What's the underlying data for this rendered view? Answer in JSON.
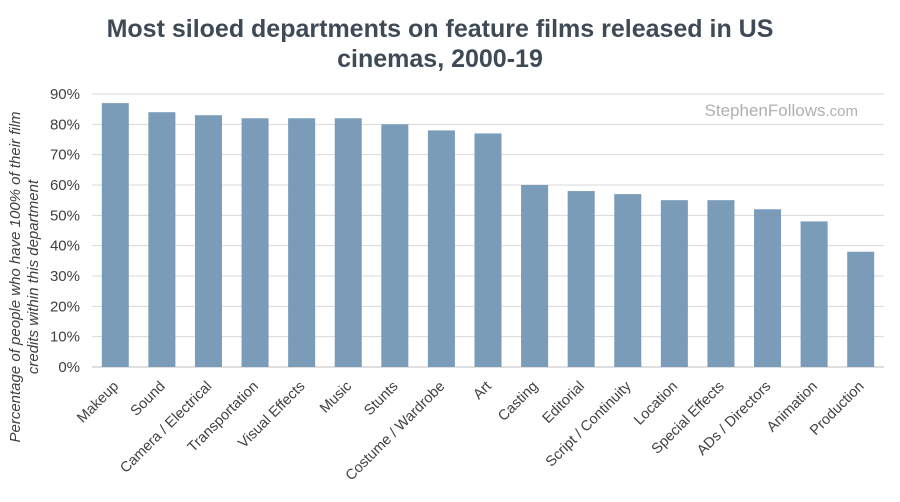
{
  "watermark": {
    "brand": "StephenFollows",
    "suffix": ".com"
  },
  "chart_data": {
    "type": "bar",
    "title_lines": [
      "Most siloed departments on feature films released in US",
      "cinemas, 2000-19"
    ],
    "ylabel_lines": [
      "Percentage of people who have 100% of their film",
      "credits within this department"
    ],
    "xlabel": "",
    "ylim": [
      0,
      90
    ],
    "yticks": [
      "0%",
      "10%",
      "20%",
      "30%",
      "40%",
      "50%",
      "60%",
      "70%",
      "80%",
      "90%"
    ],
    "grid": true,
    "bar_color": "#7a9cb8",
    "categories": [
      "Makeup",
      "Sound",
      "Camera / Electrical",
      "Transportation",
      "Visual Effects",
      "Music",
      "Stunts",
      "Costume / Wardrobe",
      "Art",
      "Casting",
      "Editorial",
      "Script / Continuity",
      "Location",
      "Special Effects",
      "ADs / Directors",
      "Animation",
      "Production"
    ],
    "values": [
      87,
      84,
      83,
      82,
      82,
      82,
      80,
      78,
      77,
      60,
      58,
      57,
      55,
      55,
      52,
      48,
      38
    ]
  }
}
